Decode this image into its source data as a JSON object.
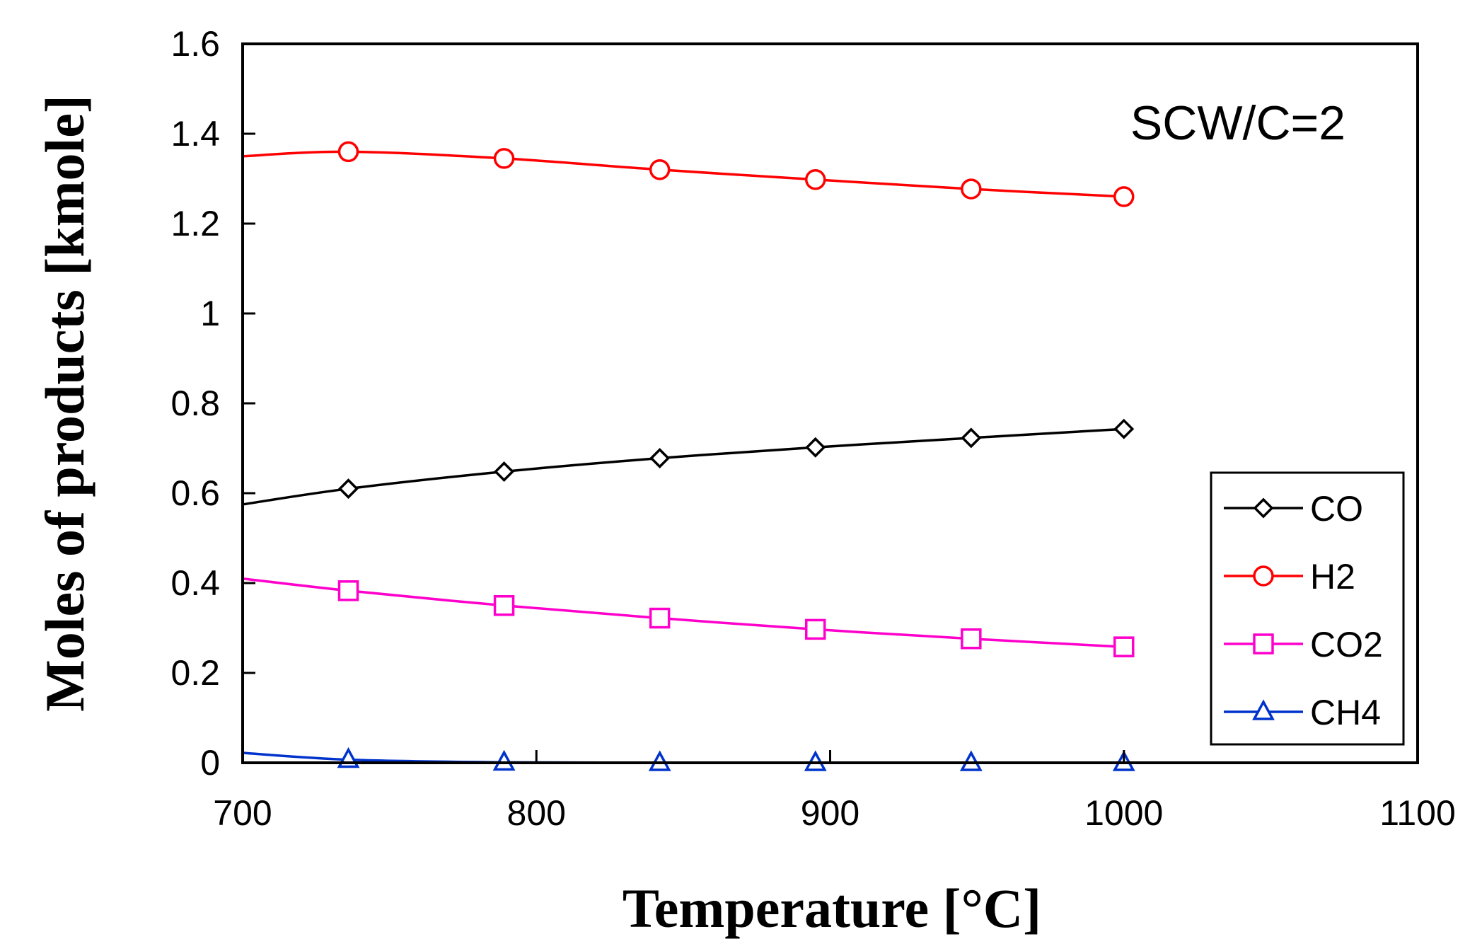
{
  "chart_data": {
    "type": "line",
    "title": "",
    "annotation": "SCW/C=2",
    "xlabel": "Temperature [°C]",
    "ylabel": "Moles of products [kmole]",
    "xlim": [
      700,
      1100
    ],
    "ylim": [
      0,
      1.6
    ],
    "xticks": [
      700,
      800,
      900,
      1000,
      1100
    ],
    "xtick_labels": [
      "700",
      "800",
      "900",
      "1000",
      "1100"
    ],
    "yticks": [
      0,
      0.2,
      0.4,
      0.6,
      0.8,
      1,
      1.2,
      1.4,
      1.6
    ],
    "ytick_labels": [
      "0",
      "0.2",
      "0.4",
      "0.6",
      "0.8",
      "1",
      "1.2",
      "1.4",
      "1.6"
    ],
    "grid": false,
    "legend_position": "bottom-right",
    "series": [
      {
        "name": "CO",
        "color": "#000000",
        "marker": "diamond",
        "curve_x": [
          700,
          736,
          789,
          842,
          895,
          948,
          1000
        ],
        "curve_y": [
          0.575,
          0.61,
          0.648,
          0.678,
          0.702,
          0.723,
          0.743
        ],
        "marker_x": [
          736,
          789,
          842,
          895,
          948,
          1000
        ],
        "marker_y": [
          0.61,
          0.648,
          0.678,
          0.702,
          0.723,
          0.743
        ]
      },
      {
        "name": "H2",
        "color": "#ff0000",
        "marker": "circle",
        "curve_x": [
          700,
          736,
          789,
          842,
          895,
          948,
          1000
        ],
        "curve_y": [
          1.35,
          1.36,
          1.345,
          1.32,
          1.298,
          1.277,
          1.26
        ],
        "marker_x": [
          736,
          789,
          842,
          895,
          948,
          1000
        ],
        "marker_y": [
          1.36,
          1.345,
          1.32,
          1.298,
          1.277,
          1.26
        ]
      },
      {
        "name": "CO2",
        "color": "#ff00cc",
        "marker": "square",
        "curve_x": [
          700,
          736,
          789,
          842,
          895,
          948,
          1000
        ],
        "curve_y": [
          0.41,
          0.383,
          0.35,
          0.322,
          0.297,
          0.276,
          0.258
        ],
        "marker_x": [
          736,
          789,
          842,
          895,
          948,
          1000
        ],
        "marker_y": [
          0.383,
          0.35,
          0.322,
          0.297,
          0.276,
          0.258
        ]
      },
      {
        "name": "CH4",
        "color": "#0033cc",
        "marker": "triangle",
        "curve_x": [
          700,
          736,
          789,
          842,
          895,
          948,
          1000
        ],
        "curve_y": [
          0.022,
          0.007,
          0.001,
          0.0,
          0.0,
          0.0,
          0.0
        ],
        "marker_x": [
          736,
          789,
          842,
          895,
          948,
          1000
        ],
        "marker_y": [
          0.007,
          0.001,
          0.0,
          0.0,
          0.0,
          0.0
        ]
      }
    ]
  }
}
